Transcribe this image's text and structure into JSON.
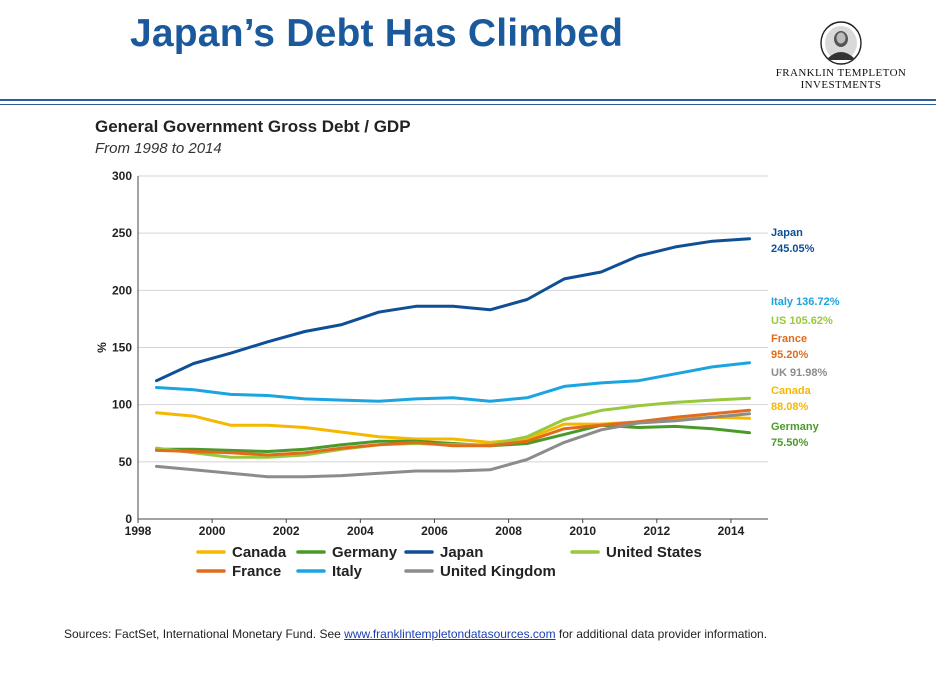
{
  "slide": {
    "title": "Japan’s Debt Has Climbed",
    "logo_line1": "FRANKLIN TEMPLETON",
    "logo_line2": "INVESTMENTS"
  },
  "footer": {
    "sources_prefix": "Sources: FactSet, International Monetary Fund. See ",
    "link_text": "www.franklintempletondatasources.com",
    "sources_suffix": " for additional data provider information."
  },
  "colors": {
    "title_blue": "#1a5a9c",
    "rule_blue": "#2d5d93"
  },
  "chart_data": {
    "type": "line",
    "title": "General Government Gross Debt / GDP",
    "subtitle": "From 1998 to 2014",
    "xlabel": "",
    "ylabel": "%",
    "xlim": [
      1998,
      2015
    ],
    "ylim": [
      0,
      300
    ],
    "x_ticks": [
      1998,
      2000,
      2002,
      2004,
      2006,
      2008,
      2010,
      2012,
      2014
    ],
    "y_ticks": [
      0,
      50,
      100,
      150,
      200,
      250,
      300
    ],
    "grid": true,
    "legend": "bottom",
    "x": [
      1998.5,
      1999.5,
      2000.5,
      2001.5,
      2002.5,
      2003.5,
      2004.5,
      2005.5,
      2006.5,
      2007.5,
      2008.5,
      2009.5,
      2010.5,
      2011.5,
      2012.5,
      2013.5,
      2014.5
    ],
    "series": [
      {
        "name": "Canada",
        "color": "#f5b800",
        "values": [
          93,
          90,
          82,
          82,
          80,
          76,
          72,
          70,
          70,
          67,
          70,
          83,
          83,
          85,
          87,
          89,
          88.08
        ],
        "end_name": "Canada",
        "end_value": "88.08%"
      },
      {
        "name": "Germany",
        "color": "#4a9a2a",
        "values": [
          61,
          61,
          60,
          59,
          61,
          65,
          68,
          68,
          66,
          64,
          66,
          74,
          82,
          80,
          81,
          79,
          75.5
        ],
        "end_name": "Germany",
        "end_value": "75.50%"
      },
      {
        "name": "Japan",
        "color": "#0f4f96",
        "values": [
          121,
          136,
          145,
          155,
          164,
          170,
          181,
          186,
          186,
          183,
          192,
          210,
          216,
          230,
          238,
          243,
          245.05
        ],
        "end_name": "Japan",
        "end_value": "245.05%"
      },
      {
        "name": "United States",
        "color": "#98c93c",
        "values": [
          62,
          58,
          54,
          54,
          56,
          61,
          65,
          66,
          65,
          65,
          72,
          87,
          95,
          99,
          102,
          104,
          105.62
        ],
        "end_name": "US",
        "end_value": "105.62%"
      },
      {
        "name": "France",
        "color": "#e36b1c",
        "values": [
          60,
          59,
          58,
          56,
          58,
          62,
          65,
          67,
          64,
          64,
          68,
          79,
          82,
          85,
          89,
          92,
          95.2
        ],
        "end_name": "France",
        "end_value": "95.20%"
      },
      {
        "name": "Italy",
        "color": "#1aa5e0",
        "values": [
          115,
          113,
          109,
          108,
          105,
          104,
          103,
          105,
          106,
          103,
          106,
          116,
          119,
          121,
          127,
          133,
          136.72
        ],
        "end_name": "Italy",
        "end_value": "136.72%"
      },
      {
        "name": "United Kingdom",
        "color": "#8c8c8c",
        "values": [
          46,
          43,
          40,
          37,
          37,
          38,
          40,
          42,
          42,
          43,
          52,
          67,
          78,
          84,
          86,
          89,
          91.98
        ],
        "end_name": "UK",
        "end_value": "91.98%"
      }
    ]
  }
}
